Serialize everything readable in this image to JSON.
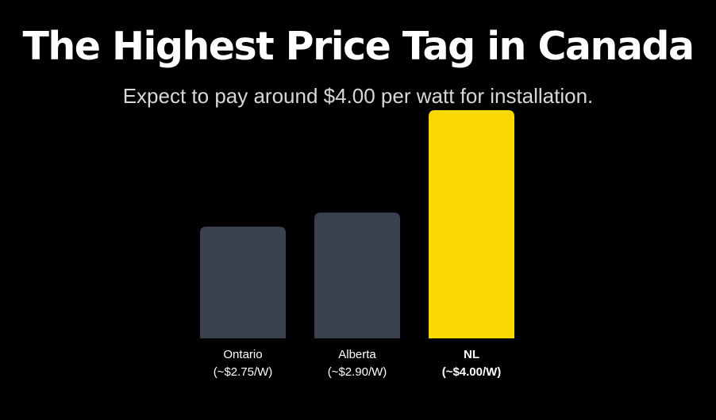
{
  "title": "The Highest Price Tag in Canada",
  "subtitle": "Expect to pay around $4.00 per watt for installation.",
  "colors": {
    "background": "#000000",
    "bar": "#3a404d",
    "highlight_bar": "#f8d800",
    "label": "#ffffff"
  },
  "chart_data": {
    "type": "bar",
    "categories": [
      "Ontario",
      "Alberta",
      "NL"
    ],
    "values": [
      2.75,
      2.9,
      4.0
    ],
    "value_labels": [
      "(~$2.75/W)",
      "(~$2.90/W)",
      "(~$4.00/W)"
    ],
    "highlighted": [
      false,
      false,
      true
    ],
    "ylim": [
      1.55,
      4.0
    ],
    "grid": false,
    "legend": "none"
  }
}
